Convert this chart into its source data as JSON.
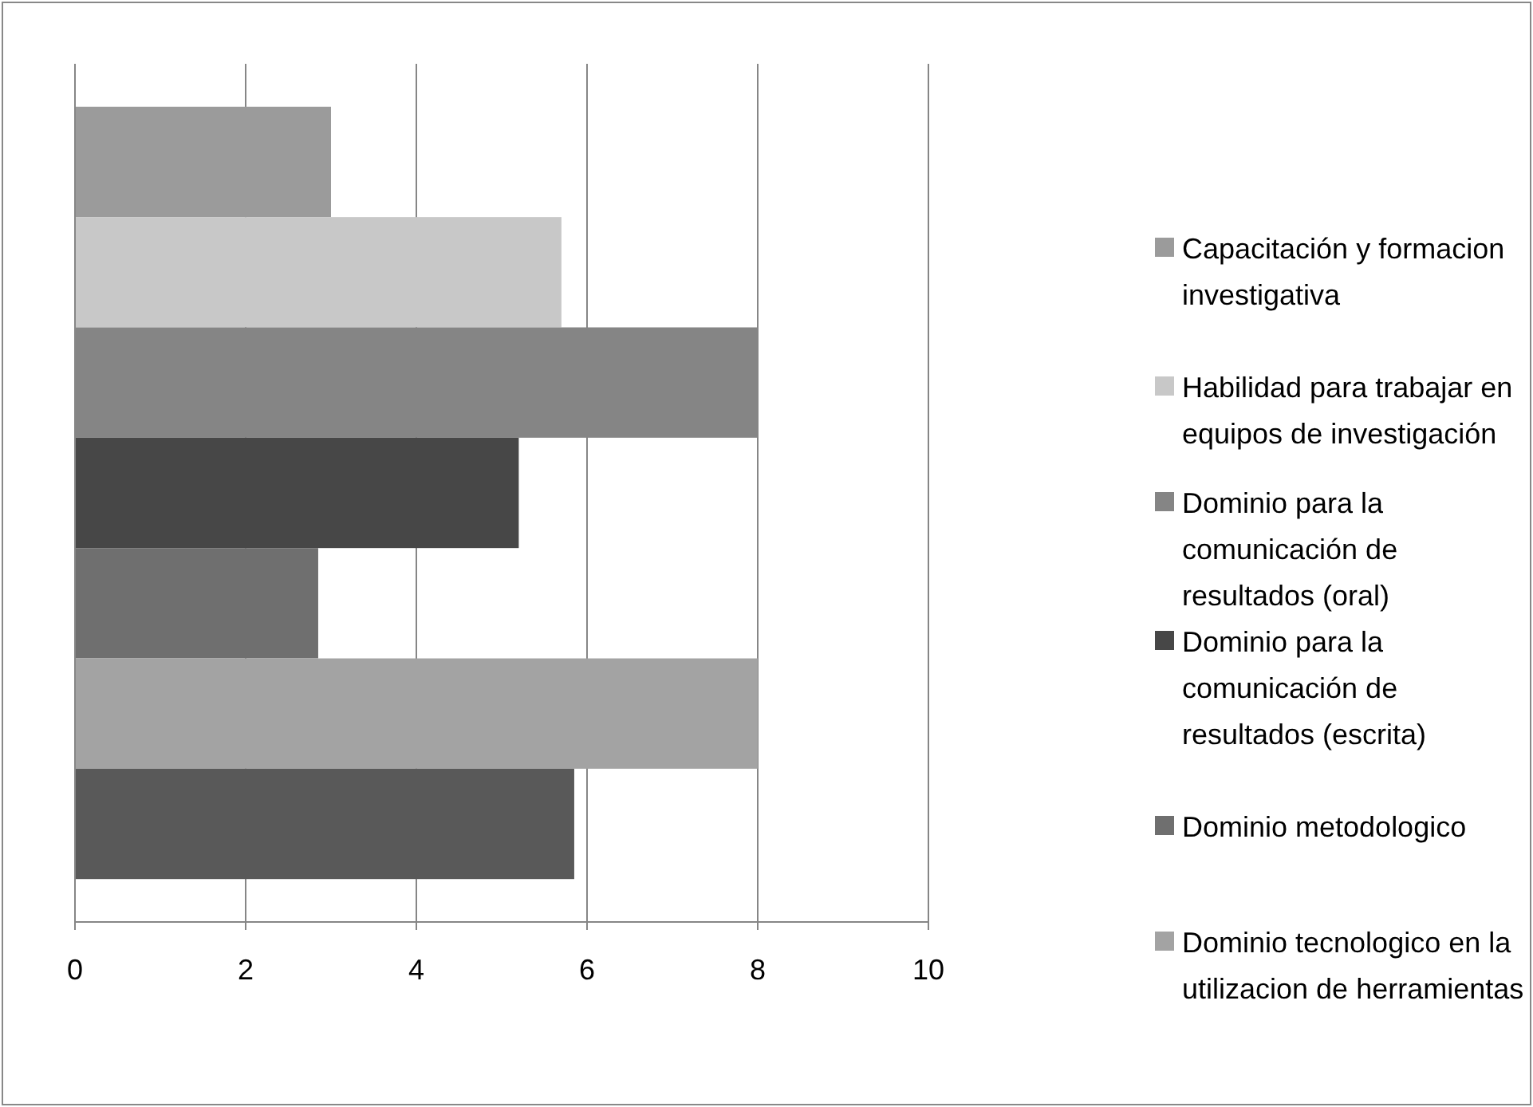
{
  "chart_data": {
    "type": "bar",
    "orientation": "horizontal",
    "categories": [
      null
    ],
    "series": [
      {
        "name": "Capacitación y formacion investigativa",
        "color": "#9b9b9b",
        "values": [
          3
        ]
      },
      {
        "name": "Habilidad para trabajar en equipos de investigación",
        "color": "#c8c8c8",
        "values": [
          5.7
        ]
      },
      {
        "name": "Dominio para la comunicación de resultados (oral)",
        "color": "#858585",
        "values": [
          8
        ]
      },
      {
        "name": "Dominio para la comunicación de resultados (escrita)",
        "color": "#474747",
        "values": [
          5.2
        ]
      },
      {
        "name": "Dominio metodologico",
        "color": "#6f6f6f",
        "values": [
          2.85
        ]
      },
      {
        "name": "Dominio tecnologico en la utilizacion de herramientas",
        "color": "#a3a3a3",
        "values": [
          8
        ]
      },
      {
        "color": "#595959",
        "values": [
          5.85
        ]
      }
    ],
    "xlim": [
      0,
      10
    ],
    "xticks": [
      0,
      2,
      4,
      6,
      8,
      10
    ],
    "grid": "x",
    "legend": "right"
  }
}
